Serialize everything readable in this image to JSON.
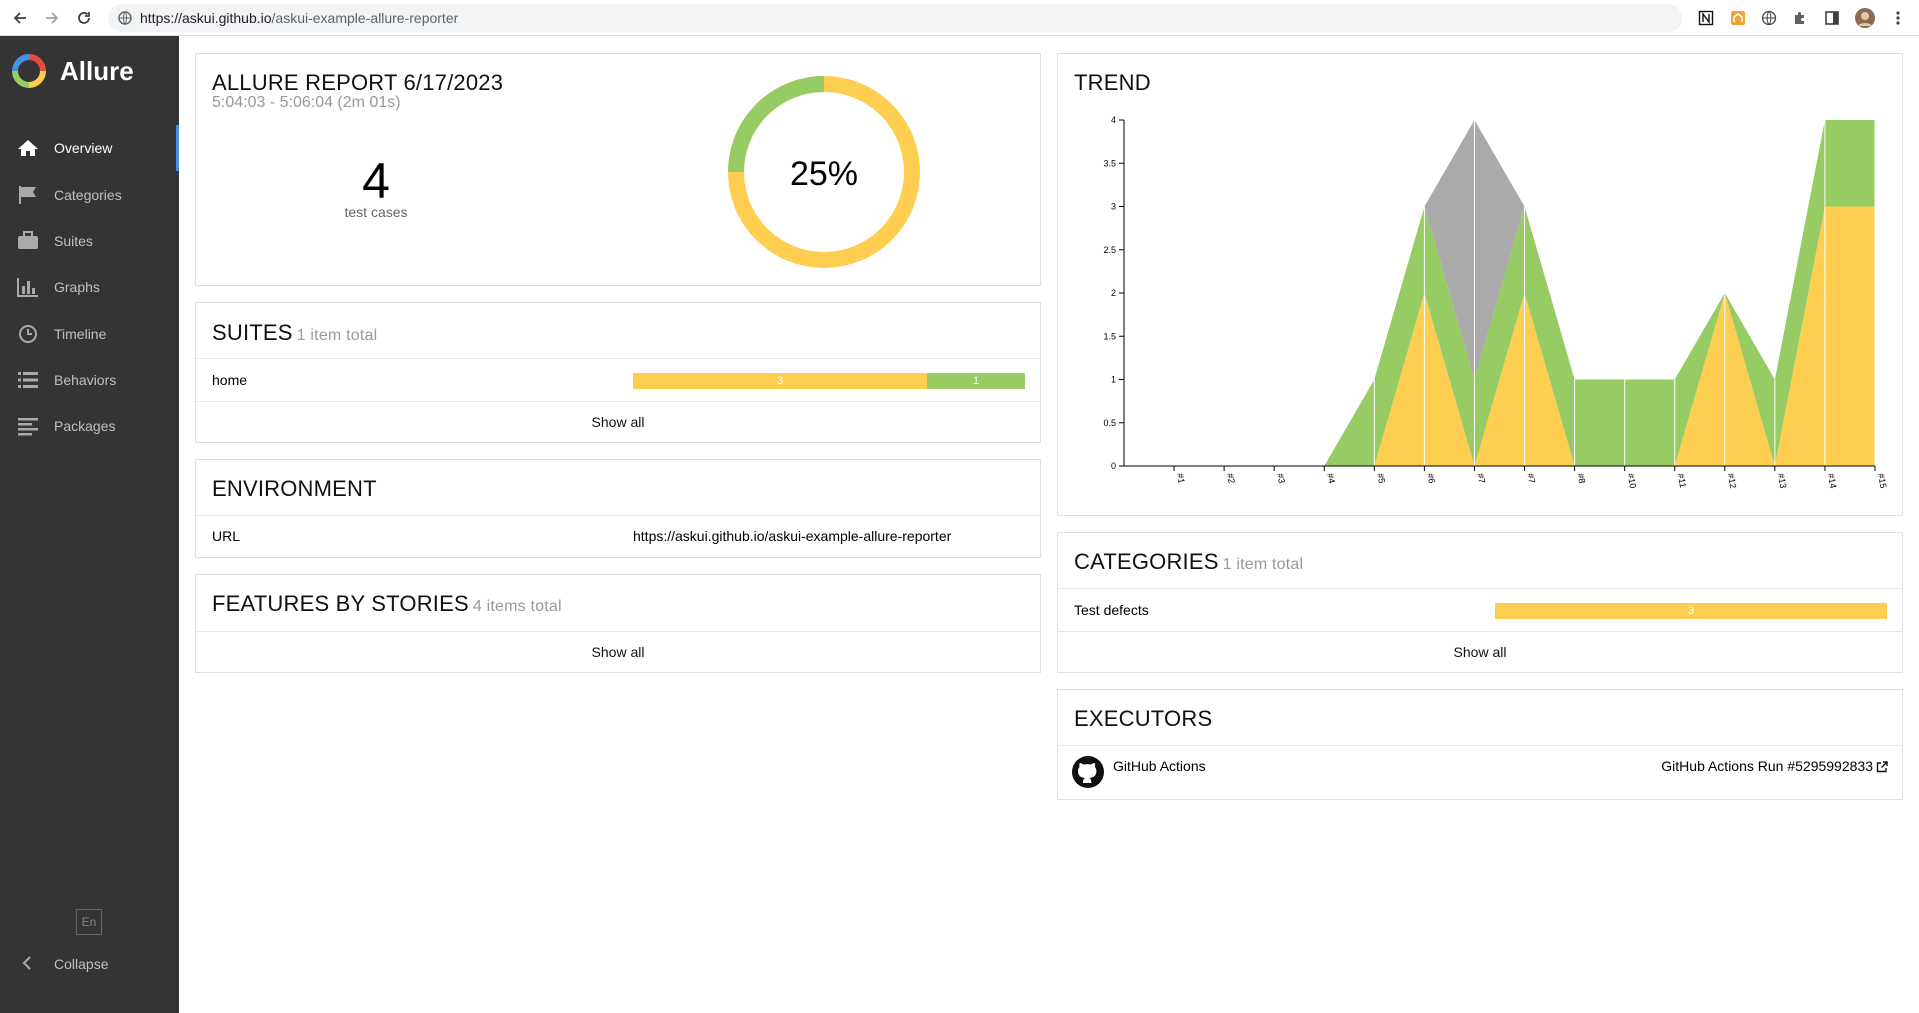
{
  "browser": {
    "url_host": "https://askui.github.io",
    "url_path": "/askui-example-allure-reporter"
  },
  "sidebar": {
    "brand": "Allure",
    "items": [
      {
        "label": "Overview",
        "icon": "home-icon",
        "active": true
      },
      {
        "label": "Categories",
        "icon": "flag-icon",
        "active": false
      },
      {
        "label": "Suites",
        "icon": "briefcase-icon",
        "active": false
      },
      {
        "label": "Graphs",
        "icon": "bar-chart-icon",
        "active": false
      },
      {
        "label": "Timeline",
        "icon": "clock-icon",
        "active": false
      },
      {
        "label": "Behaviors",
        "icon": "list-icon",
        "active": false
      },
      {
        "label": "Packages",
        "icon": "align-left-icon",
        "active": false
      }
    ],
    "language": "En",
    "collapse_label": "Collapse"
  },
  "summary": {
    "title": "ALLURE REPORT 6/17/2023",
    "time_range": "5:04:03 - 5:06:04 (2m 01s)",
    "test_count": "4",
    "test_count_label": "test cases",
    "pass_rate": "25%",
    "passed_fraction": 0.25,
    "colors": {
      "passed": "#97cc64",
      "failed": "#fece51"
    }
  },
  "suites": {
    "title": "SUITES",
    "count_label": "1 item total",
    "rows": [
      {
        "name": "home",
        "failed": 3,
        "passed": 1
      }
    ],
    "show_all": "Show all"
  },
  "environment": {
    "title": "ENVIRONMENT",
    "rows": [
      {
        "key": "URL",
        "value": "https://askui.github.io/askui-example-allure-reporter"
      }
    ]
  },
  "features": {
    "title": "FEATURES BY STORIES",
    "count_label": "4 items total",
    "show_all": "Show all"
  },
  "trend": {
    "title": "TREND",
    "chart_data": {
      "type": "area",
      "x": [
        "#1",
        "#2",
        "#3",
        "#4",
        "#5",
        "#6",
        "#7",
        "#7",
        "#8",
        "#10",
        "#11",
        "#12",
        "#13",
        "#14",
        "#15"
      ],
      "series": [
        {
          "key": "failed",
          "color": "#fece51",
          "values": [
            0,
            0,
            0,
            0,
            0,
            2,
            0,
            2,
            0,
            0,
            0,
            2,
            0,
            3,
            3
          ]
        },
        {
          "key": "passed",
          "color": "#97cc64",
          "values": [
            0,
            0,
            0,
            0,
            1,
            1,
            1,
            1,
            1,
            1,
            1,
            0,
            1,
            1,
            1
          ]
        },
        {
          "key": "skipped",
          "color": "#aaaaaa",
          "values": [
            0,
            0,
            0,
            0,
            0,
            0,
            3,
            0,
            0,
            0,
            0,
            0,
            0,
            0,
            0
          ]
        }
      ],
      "y_ticks": [
        "0",
        "0.5",
        "1",
        "1.5",
        "2",
        "2.5",
        "3",
        "3.5",
        "4"
      ],
      "ylim": [
        0,
        4
      ]
    }
  },
  "categories": {
    "title": "CATEGORIES",
    "count_label": "1 item total",
    "rows": [
      {
        "name": "Test defects",
        "count": 3
      }
    ],
    "show_all": "Show all"
  },
  "executors": {
    "title": "EXECUTORS",
    "name": "GitHub Actions",
    "icon": "github-icon",
    "link_label": "GitHub Actions Run #5295992833",
    "link_icon": "external-link-icon"
  }
}
